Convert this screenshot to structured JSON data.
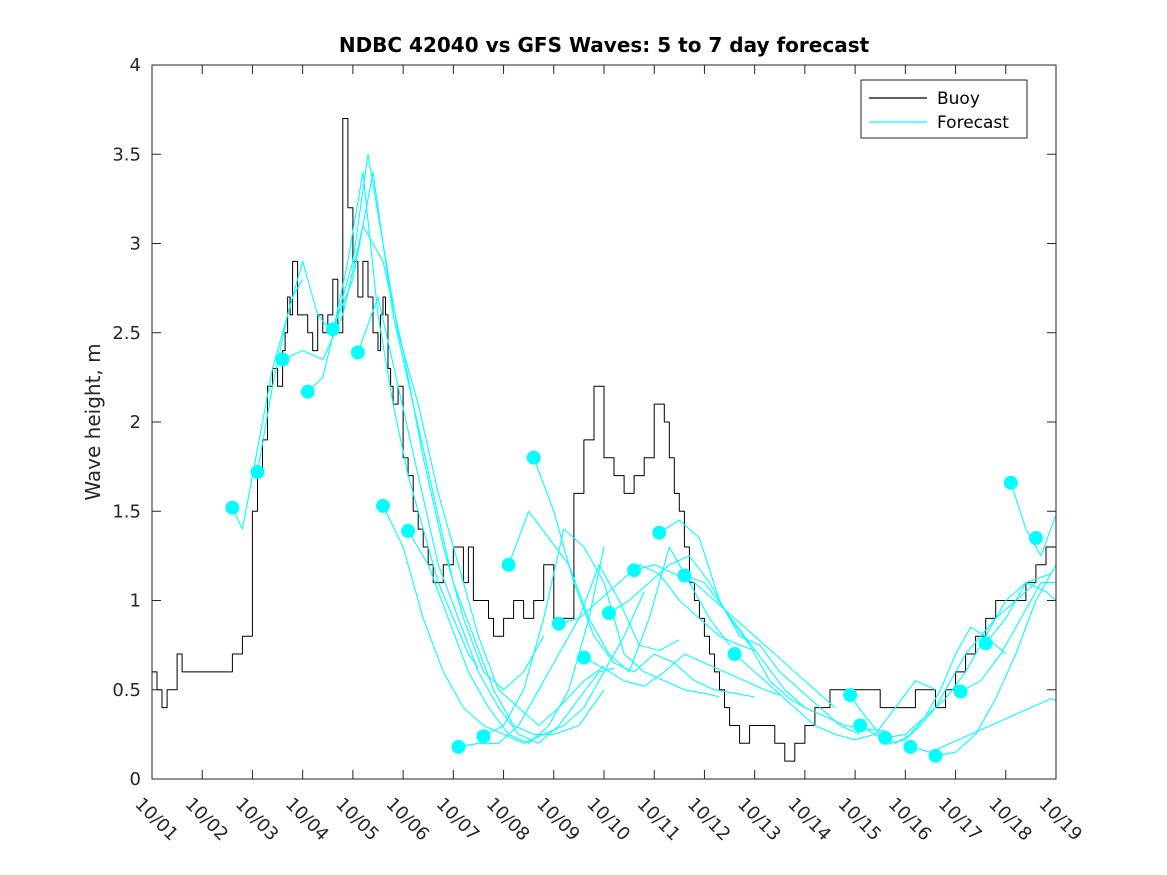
{
  "chart_data": {
    "type": "line",
    "title": "NDBC 42040 vs GFS Waves: 5 to 7 day forecast",
    "xlabel": "",
    "ylabel": "Wave height, m",
    "xlim": [
      0,
      18
    ],
    "ylim": [
      0,
      4
    ],
    "x_tick_labels": [
      "10/01",
      "10/02",
      "10/03",
      "10/04",
      "10/05",
      "10/06",
      "10/07",
      "10/08",
      "10/09",
      "10/10",
      "10/11",
      "10/12",
      "10/13",
      "10/14",
      "10/15",
      "10/16",
      "10/17",
      "10/18",
      "10/19"
    ],
    "y_ticks": [
      0,
      0.5,
      1,
      1.5,
      2,
      2.5,
      3,
      3.5,
      4
    ],
    "y_tick_labels": [
      "0",
      "0.5",
      "1",
      "1.5",
      "2",
      "2.5",
      "3",
      "3.5",
      "4"
    ],
    "legend": {
      "position": "top-right",
      "entries": [
        {
          "label": "Buoy",
          "color": "#000000"
        },
        {
          "label": "Forecast",
          "color": "#00ffff"
        }
      ]
    },
    "colors": {
      "buoy": "#000000",
      "forecast": "#00ffff"
    },
    "series": [
      {
        "name": "Buoy",
        "x": [
          0.0,
          0.1,
          0.2,
          0.3,
          0.4,
          0.5,
          0.6,
          0.7,
          0.8,
          1.0,
          1.2,
          1.4,
          1.6,
          1.8,
          2.0,
          2.1,
          2.2,
          2.3,
          2.4,
          2.5,
          2.55,
          2.6,
          2.65,
          2.7,
          2.75,
          2.8,
          2.9,
          3.0,
          3.1,
          3.2,
          3.3,
          3.4,
          3.5,
          3.6,
          3.7,
          3.8,
          3.9,
          4.0,
          4.1,
          4.2,
          4.3,
          4.4,
          4.5,
          4.55,
          4.6,
          4.65,
          4.7,
          4.75,
          4.8,
          4.9,
          5.0,
          5.1,
          5.2,
          5.3,
          5.4,
          5.5,
          5.6,
          5.7,
          5.8,
          5.9,
          6.0,
          6.1,
          6.2,
          6.3,
          6.4,
          6.5,
          6.6,
          6.7,
          6.8,
          6.9,
          7.0,
          7.2,
          7.4,
          7.6,
          7.8,
          8.0,
          8.2,
          8.4,
          8.6,
          8.8,
          9.0,
          9.2,
          9.4,
          9.6,
          9.8,
          10.0,
          10.2,
          10.3,
          10.4,
          10.5,
          10.6,
          10.7,
          10.8,
          10.9,
          11.0,
          11.1,
          11.2,
          11.3,
          11.4,
          11.5,
          11.6,
          11.7,
          11.8,
          11.9,
          12.0,
          12.2,
          12.4,
          12.6,
          12.8,
          13.0,
          13.2,
          13.5,
          14.0,
          14.5,
          14.8,
          15.0,
          15.2,
          15.4,
          15.6,
          15.8,
          16.0,
          16.2,
          16.4,
          16.6,
          16.8,
          17.0,
          17.2,
          17.4,
          17.6,
          17.8,
          18.0
        ],
        "y": [
          0.6,
          0.5,
          0.4,
          0.5,
          0.5,
          0.7,
          0.6,
          0.6,
          0.6,
          0.6,
          0.6,
          0.6,
          0.7,
          0.8,
          1.5,
          1.7,
          1.9,
          2.2,
          2.3,
          2.2,
          2.2,
          2.4,
          2.5,
          2.7,
          2.6,
          2.9,
          2.6,
          2.6,
          2.5,
          2.4,
          2.6,
          2.5,
          2.6,
          2.8,
          2.5,
          3.7,
          3.2,
          2.9,
          2.7,
          2.9,
          2.7,
          2.5,
          2.4,
          2.6,
          2.7,
          2.6,
          2.3,
          2.2,
          2.1,
          2.2,
          1.8,
          1.7,
          1.5,
          1.4,
          1.3,
          1.2,
          1.1,
          1.1,
          1.2,
          1.2,
          1.3,
          1.3,
          1.1,
          1.3,
          1.0,
          1.0,
          1.0,
          0.9,
          0.8,
          0.8,
          0.9,
          1.0,
          0.9,
          1.0,
          1.2,
          0.9,
          0.9,
          1.6,
          1.9,
          2.2,
          1.8,
          1.7,
          1.6,
          1.7,
          1.8,
          2.1,
          2.0,
          1.8,
          1.6,
          1.5,
          1.3,
          1.1,
          1.0,
          0.9,
          0.8,
          0.7,
          0.6,
          0.5,
          0.4,
          0.3,
          0.3,
          0.2,
          0.2,
          0.3,
          0.3,
          0.3,
          0.2,
          0.1,
          0.2,
          0.3,
          0.4,
          0.5,
          0.5,
          0.4,
          0.4,
          0.4,
          0.5,
          0.5,
          0.4,
          0.5,
          0.6,
          0.7,
          0.8,
          0.9,
          1.0,
          1.0,
          1.0,
          1.1,
          1.2,
          1.3,
          1.4
        ],
        "color": "#000000"
      },
      {
        "name": "Forecast",
        "segment": 1,
        "x": [
          1.6,
          1.8,
          2.0,
          2.2,
          2.4,
          2.6,
          2.8,
          3.0
        ],
        "y": [
          1.52,
          1.4,
          1.7,
          2.0,
          2.3,
          2.5,
          2.7,
          2.8
        ],
        "color": "#00ffff"
      },
      {
        "name": "Forecast",
        "segment": 2,
        "x": [
          2.1,
          2.4,
          2.7,
          3.0,
          3.3,
          3.6,
          3.9,
          4.2,
          4.5,
          4.8,
          5.1,
          5.4,
          5.7,
          6.0,
          6.3,
          6.5
        ],
        "y": [
          1.72,
          2.2,
          2.6,
          2.9,
          2.6,
          2.5,
          2.9,
          3.4,
          2.6,
          2.1,
          1.7,
          1.4,
          1.1,
          0.9,
          0.7,
          0.62
        ],
        "color": "#00ffff"
      },
      {
        "name": "Forecast",
        "segment": 3,
        "x": [
          2.6,
          3.0,
          3.4,
          3.8,
          4.2,
          4.6,
          5.0,
          5.4,
          5.8,
          6.2,
          6.6,
          7.0,
          7.4,
          7.8
        ],
        "y": [
          2.35,
          2.4,
          2.35,
          2.6,
          3.1,
          2.9,
          2.4,
          1.8,
          1.3,
          0.9,
          0.6,
          0.5,
          0.6,
          0.8
        ],
        "color": "#00ffff"
      },
      {
        "name": "Forecast",
        "segment": 4,
        "x": [
          3.1,
          3.4,
          3.7,
          4.0,
          4.3,
          4.6,
          4.9,
          5.3,
          5.7,
          6.1,
          6.5,
          6.9,
          7.3,
          7.7,
          8.1,
          8.6,
          9.0
        ],
        "y": [
          2.17,
          2.25,
          2.6,
          2.9,
          3.5,
          3.0,
          2.5,
          2.1,
          1.6,
          1.2,
          0.8,
          0.5,
          0.4,
          0.3,
          0.4,
          0.55,
          0.63
        ],
        "color": "#00ffff"
      },
      {
        "name": "Forecast",
        "segment": 5,
        "x": [
          3.6,
          4.0,
          4.4,
          4.8,
          5.2,
          5.6,
          6.0,
          6.4,
          6.8,
          7.2,
          7.6,
          8.0,
          8.5,
          9.0
        ],
        "y": [
          2.52,
          2.8,
          3.4,
          2.6,
          2.1,
          1.6,
          1.1,
          0.8,
          0.5,
          0.3,
          0.25,
          0.25,
          0.3,
          0.5
        ],
        "color": "#00ffff"
      },
      {
        "name": "Forecast",
        "segment": 6,
        "x": [
          4.1,
          4.5,
          4.9,
          5.3,
          5.7,
          6.1,
          6.5,
          6.9,
          7.3,
          7.7,
          8.1,
          8.5,
          8.9,
          9.2
        ],
        "y": [
          2.39,
          2.7,
          2.2,
          1.7,
          1.2,
          0.9,
          0.6,
          0.4,
          0.25,
          0.2,
          0.3,
          0.45,
          0.6,
          0.62
        ],
        "color": "#00ffff"
      },
      {
        "name": "Forecast",
        "segment": 7,
        "x": [
          4.6,
          5.0,
          5.4,
          5.8,
          6.2,
          6.6,
          7.0,
          7.4,
          7.8,
          8.2,
          8.6,
          9.0,
          9.4,
          9.8
        ],
        "y": [
          1.53,
          1.3,
          0.9,
          0.6,
          0.4,
          0.3,
          0.25,
          0.2,
          0.25,
          0.3,
          0.4,
          0.6,
          0.8,
          1.05
        ],
        "color": "#00ffff"
      },
      {
        "name": "Forecast",
        "segment": 8,
        "x": [
          5.1,
          5.5,
          5.9,
          6.3,
          6.7,
          7.1,
          7.5,
          7.9,
          8.3,
          8.7,
          9.0
        ],
        "y": [
          1.39,
          1.2,
          0.9,
          0.6,
          0.4,
          0.25,
          0.2,
          0.3,
          0.5,
          0.9,
          1.3
        ],
        "color": "#00ffff"
      },
      {
        "name": "Forecast",
        "segment": 9,
        "x": [
          6.1,
          6.5,
          6.9,
          7.3,
          7.7,
          8.1,
          8.5,
          8.9,
          9.3,
          9.7,
          10.1,
          10.5
        ],
        "y": [
          0.18,
          0.2,
          0.2,
          0.3,
          0.5,
          0.7,
          0.9,
          1.2,
          1.0,
          0.75,
          0.72,
          0.78
        ],
        "color": "#00ffff"
      },
      {
        "name": "Forecast",
        "segment": 10,
        "x": [
          6.6,
          7.0,
          7.4,
          7.8,
          8.2,
          8.6,
          9.0,
          9.4,
          9.8,
          10.2,
          10.6,
          11.0,
          11.3
        ],
        "y": [
          0.24,
          0.3,
          0.5,
          0.9,
          1.4,
          1.3,
          1.1,
          0.7,
          0.6,
          0.55,
          0.5,
          0.48,
          0.46
        ],
        "color": "#00ffff"
      },
      {
        "name": "Forecast",
        "segment": 11,
        "x": [
          7.1,
          7.5,
          7.9,
          8.3,
          8.7,
          9.1,
          9.5,
          9.9,
          10.3,
          10.7,
          11.1,
          11.5
        ],
        "y": [
          1.2,
          1.5,
          1.35,
          1.2,
          0.9,
          0.7,
          0.6,
          0.9,
          1.3,
          1.1,
          0.9,
          0.75
        ],
        "color": "#00ffff"
      },
      {
        "name": "Forecast",
        "segment": 12,
        "x": [
          7.6,
          8.0,
          8.4,
          8.8,
          9.2,
          9.6,
          10.0,
          10.4,
          10.8,
          11.2,
          11.6,
          12.0
        ],
        "y": [
          1.8,
          1.5,
          1.1,
          0.8,
          0.65,
          0.6,
          0.7,
          0.65,
          0.55,
          0.5,
          0.48,
          0.46
        ],
        "color": "#00ffff"
      },
      {
        "name": "Forecast",
        "segment": 13,
        "x": [
          8.1,
          8.5,
          8.9,
          9.3,
          9.7,
          10.1,
          10.5,
          10.9,
          11.3,
          11.7,
          12.0
        ],
        "y": [
          0.87,
          0.9,
          1.0,
          1.1,
          1.2,
          1.15,
          1.0,
          0.9,
          0.8,
          0.75,
          0.72
        ],
        "color": "#00ffff"
      },
      {
        "name": "Forecast",
        "segment": 14,
        "x": [
          8.6,
          9.0,
          9.4,
          9.8,
          10.2,
          10.6,
          11.0,
          11.4,
          11.8,
          12.2,
          12.5
        ],
        "y": [
          0.68,
          0.62,
          0.55,
          0.52,
          0.6,
          0.7,
          0.65,
          0.6,
          0.55,
          0.5,
          0.47
        ],
        "color": "#00ffff"
      },
      {
        "name": "Forecast",
        "segment": 15,
        "x": [
          9.1,
          9.5,
          9.9,
          10.3,
          10.7,
          11.1,
          11.5,
          11.9,
          12.3,
          12.7,
          13.0
        ],
        "y": [
          0.93,
          1.0,
          1.1,
          1.2,
          1.25,
          1.1,
          0.9,
          0.75,
          0.55,
          0.45,
          0.4
        ],
        "color": "#00ffff"
      },
      {
        "name": "Forecast",
        "segment": 16,
        "x": [
          9.6,
          10.0,
          10.4,
          10.8,
          11.2,
          11.6,
          12.0,
          12.4,
          12.8,
          13.2,
          13.6
        ],
        "y": [
          1.17,
          1.2,
          1.15,
          1.1,
          1.0,
          0.9,
          0.8,
          0.7,
          0.6,
          0.5,
          0.4
        ],
        "color": "#00ffff"
      },
      {
        "name": "Forecast",
        "segment": 17,
        "x": [
          10.1,
          10.5,
          10.9,
          11.3,
          11.7,
          12.1,
          12.5,
          12.9,
          13.3,
          13.7,
          14.1
        ],
        "y": [
          1.38,
          1.45,
          1.35,
          1.0,
          0.8,
          0.75,
          0.6,
          0.5,
          0.4,
          0.3,
          0.25
        ],
        "color": "#00ffff"
      },
      {
        "name": "Forecast",
        "segment": 18,
        "x": [
          10.6,
          11.0,
          11.4,
          11.8,
          12.2,
          12.6,
          13.0,
          13.4,
          13.8,
          14.2,
          14.6
        ],
        "y": [
          1.14,
          1.1,
          0.95,
          0.8,
          0.65,
          0.5,
          0.4,
          0.35,
          0.3,
          0.28,
          0.27
        ],
        "color": "#00ffff"
      },
      {
        "name": "Forecast",
        "segment": 19,
        "x": [
          11.6,
          12.0,
          12.4,
          12.8,
          13.2,
          13.6,
          14.0,
          14.4,
          14.8,
          15.2,
          15.6
        ],
        "y": [
          0.7,
          0.6,
          0.5,
          0.4,
          0.3,
          0.25,
          0.22,
          0.25,
          0.4,
          0.55,
          0.5
        ],
        "color": "#00ffff"
      },
      {
        "name": "Forecast",
        "segment": 20,
        "x": [
          13.9,
          14.2,
          14.5,
          14.8,
          15.1,
          15.4,
          15.7,
          16.0,
          16.3,
          16.6,
          17.0
        ],
        "y": [
          0.47,
          0.35,
          0.25,
          0.2,
          0.25,
          0.35,
          0.5,
          0.7,
          0.85,
          0.8,
          0.7
        ],
        "color": "#00ffff"
      },
      {
        "name": "Forecast",
        "segment": 21,
        "x": [
          14.1,
          14.4,
          14.7,
          15.0,
          15.3,
          15.6,
          15.9,
          16.2,
          16.5,
          16.8,
          17.2,
          17.6
        ],
        "y": [
          0.3,
          0.25,
          0.2,
          0.22,
          0.3,
          0.4,
          0.55,
          0.7,
          0.8,
          0.9,
          1.0,
          1.1
        ],
        "color": "#00ffff"
      },
      {
        "name": "Forecast",
        "segment": 22,
        "x": [
          14.6,
          15.0,
          15.4,
          15.8,
          16.2,
          16.6,
          17.0,
          17.4,
          17.9
        ],
        "y": [
          0.23,
          0.25,
          0.35,
          0.45,
          0.6,
          0.8,
          1.0,
          1.1,
          1.15
        ],
        "color": "#00ffff"
      },
      {
        "name": "Forecast",
        "segment": 23,
        "x": [
          15.1,
          15.5,
          15.9,
          16.3,
          16.7,
          17.1,
          17.5,
          17.9,
          18.0
        ],
        "y": [
          0.18,
          0.15,
          0.2,
          0.25,
          0.3,
          0.35,
          0.4,
          0.45,
          0.44
        ],
        "color": "#00ffff"
      },
      {
        "name": "Forecast",
        "segment": 24,
        "x": [
          15.6,
          16.0,
          16.4,
          16.8,
          17.2,
          17.6,
          18.0
        ],
        "y": [
          0.13,
          0.15,
          0.25,
          0.45,
          0.7,
          1.0,
          1.2
        ],
        "color": "#00ffff"
      },
      {
        "name": "Forecast",
        "segment": 25,
        "x": [
          16.1,
          16.5,
          16.9,
          17.3,
          17.7,
          18.0
        ],
        "y": [
          0.49,
          0.55,
          0.7,
          0.9,
          1.1,
          1.1
        ],
        "color": "#00ffff"
      },
      {
        "name": "Forecast",
        "segment": 26,
        "x": [
          16.6,
          17.0,
          17.4,
          17.8,
          18.0
        ],
        "y": [
          0.76,
          0.9,
          1.1,
          1.05,
          1.0
        ],
        "color": "#00ffff"
      },
      {
        "name": "Forecast",
        "segment": 27,
        "x": [
          17.1,
          17.4,
          17.7,
          18.0
        ],
        "y": [
          1.66,
          1.4,
          1.25,
          1.48
        ],
        "color": "#00ffff"
      }
    ],
    "forecast_markers": {
      "x": [
        1.6,
        2.1,
        2.6,
        3.1,
        3.6,
        4.1,
        4.6,
        5.1,
        6.1,
        6.6,
        7.1,
        7.6,
        8.1,
        8.6,
        9.1,
        9.6,
        10.1,
        10.6,
        11.6,
        13.9,
        14.1,
        14.6,
        15.1,
        15.6,
        16.1,
        16.6,
        17.1,
        17.6
      ],
      "y": [
        1.52,
        1.72,
        2.35,
        2.17,
        2.52,
        2.39,
        1.53,
        1.39,
        0.18,
        0.24,
        1.2,
        1.8,
        0.87,
        0.68,
        0.93,
        1.17,
        1.38,
        1.14,
        0.7,
        0.47,
        0.3,
        0.23,
        0.18,
        0.13,
        0.49,
        0.76,
        1.66,
        1.35
      ],
      "color": "#00ffff"
    }
  }
}
